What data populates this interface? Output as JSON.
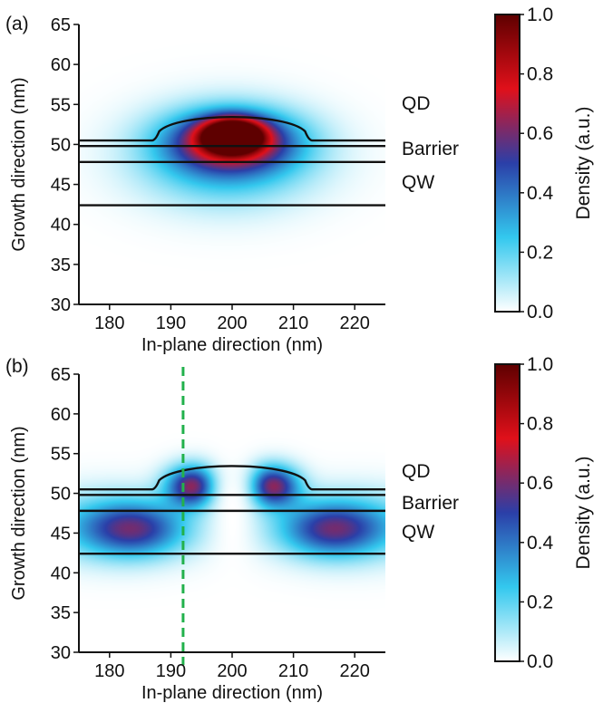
{
  "chart_data": [
    {
      "type": "heatmap",
      "panel_label": "(a)",
      "xlabel": "In-plane direction (nm)",
      "ylabel": "Growth direction (nm)",
      "xlim": [
        175,
        225
      ],
      "ylim": [
        30,
        65
      ],
      "xticks": [
        "180",
        "190",
        "200",
        "210",
        "220"
      ],
      "yticks": [
        "30",
        "35",
        "40",
        "45",
        "50",
        "55",
        "60",
        "65"
      ],
      "region_labels": [
        "QD",
        "Barrier",
        "QW"
      ],
      "colorbar": {
        "label": "Density (a.u.)",
        "ticks": [
          "0.0",
          "0.2",
          "0.4",
          "0.6",
          "0.8",
          "1.0"
        ],
        "colors": [
          "#ffffff",
          "#33c8ee",
          "#2b3fa8",
          "#e0101a",
          "#5e0000"
        ]
      },
      "structure": {
        "qd_base_y": 50.5,
        "qd_top_y": 53.8,
        "qd_x_range": [
          187.5,
          212.5
        ],
        "barrier_top_y": 50.5,
        "barrier_bottom_y": 49.8,
        "qw_top_y": 47.8,
        "qw_bottom_y": 42.4
      },
      "density_blobs": [
        {
          "x": 200,
          "y": 51.2,
          "sx": 3.3,
          "sy": 1.4,
          "amplitude": 0.98
        },
        {
          "x": 200,
          "y": 50.5,
          "sx": 7.0,
          "sy": 2.5,
          "amplitude": 0.6
        },
        {
          "x": 199,
          "y": 48.5,
          "sx": 9.5,
          "sy": 4.0,
          "amplitude": 0.34
        }
      ]
    },
    {
      "type": "heatmap",
      "panel_label": "(b)",
      "xlabel": "In-plane direction (nm)",
      "ylabel": "Growth direction (nm)",
      "xlim": [
        175,
        225
      ],
      "ylim": [
        30,
        65
      ],
      "xticks": [
        "180",
        "190",
        "200",
        "210",
        "220"
      ],
      "yticks": [
        "30",
        "35",
        "40",
        "45",
        "50",
        "55",
        "60",
        "65"
      ],
      "region_labels": [
        "QD",
        "Barrier",
        "QW"
      ],
      "colorbar": {
        "label": "Density (a.u.)",
        "ticks": [
          "0.0",
          "0.2",
          "0.4",
          "0.6",
          "0.8",
          "1.0"
        ],
        "colors": [
          "#ffffff",
          "#33c8ee",
          "#2b3fa8",
          "#e0101a",
          "#5e0000"
        ]
      },
      "structure": {
        "qd_base_y": 50.5,
        "qd_top_y": 53.8,
        "qd_x_range": [
          187.5,
          212.5
        ],
        "barrier_top_y": 50.5,
        "barrier_bottom_y": 49.8,
        "qw_top_y": 47.8,
        "qw_bottom_y": 42.4
      },
      "guide_line_x": 192,
      "guide_line_color": "#22b14c",
      "density_blobs": [
        {
          "x": 193.5,
          "y": 51.0,
          "sx": 3.0,
          "sy": 1.8,
          "amplitude": 0.62
        },
        {
          "x": 206.5,
          "y": 51.0,
          "sx": 3.0,
          "sy": 1.8,
          "amplitude": 0.62
        },
        {
          "x": 184,
          "y": 45.5,
          "sx": 5.5,
          "sy": 2.3,
          "amplitude": 0.38
        },
        {
          "x": 216,
          "y": 45.5,
          "sx": 5.5,
          "sy": 2.3,
          "amplitude": 0.38
        },
        {
          "x": 180,
          "y": 46,
          "sx": 9.0,
          "sy": 3.0,
          "amplitude": 0.24
        },
        {
          "x": 220,
          "y": 46,
          "sx": 9.0,
          "sy": 3.0,
          "amplitude": 0.24
        }
      ],
      "density_hole": {
        "x": 200,
        "y": 47,
        "sx": 2.4,
        "sy": 9.0
      }
    }
  ]
}
